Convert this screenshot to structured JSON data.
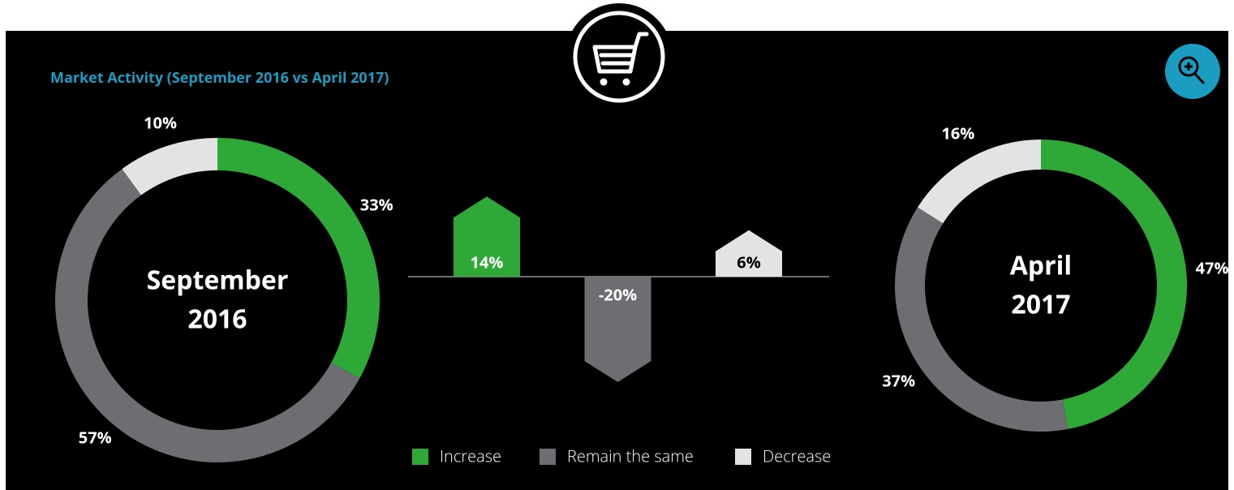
{
  "title": "Market Activity (September 2016 vs April 2017)",
  "chart_data": [
    {
      "type": "pie",
      "center_label": [
        "September",
        "2016"
      ],
      "categories": [
        "Increase",
        "Remain the same",
        "Decrease"
      ],
      "values": [
        33,
        57,
        10
      ],
      "value_labels": [
        "33%",
        "57%",
        "10%"
      ],
      "colors": [
        "#2ea836",
        "#6d6e71",
        "#e3e3e3"
      ]
    },
    {
      "type": "bar",
      "categories": [
        "Increase",
        "Remain the same",
        "Decrease"
      ],
      "values": [
        14,
        -20,
        6
      ],
      "value_labels": [
        "14%",
        "-20%",
        "6%"
      ],
      "colors": [
        "#2ea836",
        "#6d6e71",
        "#e3e3e3"
      ]
    },
    {
      "type": "pie",
      "center_label": [
        "April",
        "2017"
      ],
      "categories": [
        "Increase",
        "Remain the same",
        "Decrease"
      ],
      "values": [
        47,
        37,
        16
      ],
      "value_labels": [
        "47%",
        "37%",
        "16%"
      ],
      "colors": [
        "#2ea836",
        "#6d6e71",
        "#e3e3e3"
      ]
    }
  ]
}
